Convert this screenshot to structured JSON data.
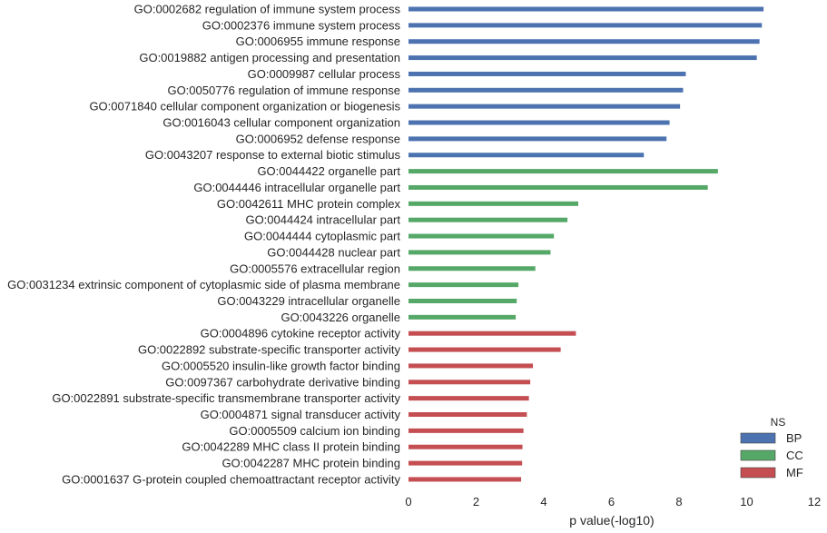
{
  "chart_data": {
    "type": "bar",
    "orientation": "horizontal",
    "title": "",
    "xlabel": "p value(-log10)",
    "ylabel": "",
    "xlim": [
      0,
      12
    ],
    "xticks": [
      "0",
      "2",
      "4",
      "6",
      "8",
      "10",
      "12"
    ],
    "grid": false,
    "legend": {
      "title": "NS",
      "placement": "bottom-right",
      "entries": [
        {
          "name": "BP",
          "color": "#4c72b0"
        },
        {
          "name": "CC",
          "color": "#55a868"
        },
        {
          "name": "MF",
          "color": "#c44e52"
        }
      ]
    },
    "bars": [
      {
        "label": "GO:0002682 regulation of immune system process",
        "value": 10.5,
        "ns": "BP"
      },
      {
        "label": "GO:0002376 immune system process",
        "value": 10.45,
        "ns": "BP"
      },
      {
        "label": "GO:0006955 immune response",
        "value": 10.38,
        "ns": "BP"
      },
      {
        "label": "GO:0019882 antigen processing and presentation",
        "value": 10.3,
        "ns": "BP"
      },
      {
        "label": "GO:0009987 cellular process",
        "value": 8.2,
        "ns": "BP"
      },
      {
        "label": "GO:0050776 regulation of immune response",
        "value": 8.12,
        "ns": "BP"
      },
      {
        "label": "GO:0071840 cellular component organization or biogenesis",
        "value": 8.03,
        "ns": "BP"
      },
      {
        "label": "GO:0016043 cellular component organization",
        "value": 7.72,
        "ns": "BP"
      },
      {
        "label": "GO:0006952 defense response",
        "value": 7.63,
        "ns": "BP"
      },
      {
        "label": "GO:0043207 response to external biotic stimulus",
        "value": 6.96,
        "ns": "BP"
      },
      {
        "label": "GO:0044422 organelle part",
        "value": 9.15,
        "ns": "CC"
      },
      {
        "label": "GO:0044446 intracellular organelle part",
        "value": 8.85,
        "ns": "CC"
      },
      {
        "label": "GO:0042611 MHC protein complex",
        "value": 5.02,
        "ns": "CC"
      },
      {
        "label": "GO:0044424 intracellular part",
        "value": 4.7,
        "ns": "CC"
      },
      {
        "label": "GO:0044444 cytoplasmic part",
        "value": 4.3,
        "ns": "CC"
      },
      {
        "label": "GO:0044428 nuclear part",
        "value": 4.2,
        "ns": "CC"
      },
      {
        "label": "GO:0005576 extracellular region",
        "value": 3.75,
        "ns": "CC"
      },
      {
        "label": "GO:0031234 extrinsic component of cytoplasmic side of plasma membrane",
        "value": 3.25,
        "ns": "CC"
      },
      {
        "label": "GO:0043229 intracellular organelle",
        "value": 3.2,
        "ns": "CC"
      },
      {
        "label": "GO:0043226 organelle",
        "value": 3.17,
        "ns": "CC"
      },
      {
        "label": "GO:0004896 cytokine receptor activity",
        "value": 4.95,
        "ns": "MF"
      },
      {
        "label": "GO:0022892 substrate-specific transporter activity",
        "value": 4.5,
        "ns": "MF"
      },
      {
        "label": "GO:0005520 insulin-like growth factor binding",
        "value": 3.68,
        "ns": "MF"
      },
      {
        "label": "GO:0097367 carbohydrate derivative binding",
        "value": 3.6,
        "ns": "MF"
      },
      {
        "label": "GO:0022891 substrate-specific transmembrane transporter activity",
        "value": 3.56,
        "ns": "MF"
      },
      {
        "label": "GO:0004871 signal transducer activity",
        "value": 3.5,
        "ns": "MF"
      },
      {
        "label": "GO:0005509 calcium ion binding",
        "value": 3.4,
        "ns": "MF"
      },
      {
        "label": "GO:0042289 MHC class II protein binding",
        "value": 3.37,
        "ns": "MF"
      },
      {
        "label": "GO:0042287 MHC protein binding",
        "value": 3.36,
        "ns": "MF"
      },
      {
        "label": "GO:0001637 G-protein coupled chemoattractant receptor activity",
        "value": 3.33,
        "ns": "MF"
      }
    ]
  }
}
